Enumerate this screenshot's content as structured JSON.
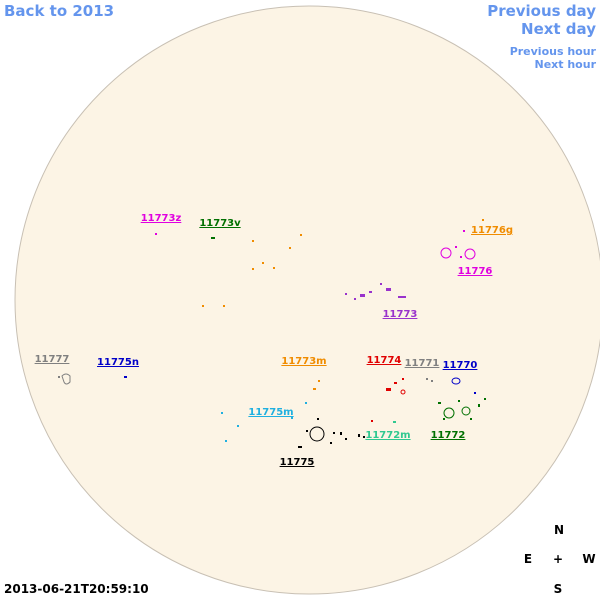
{
  "navigation": {
    "back": "Back to 2013",
    "previous_day": "Previous day",
    "next_day": "Next day",
    "previous_hour": "Previous hour",
    "next_hour": "Next hour"
  },
  "regions": [
    {
      "label": "11773z",
      "color": "#e000e0"
    },
    {
      "label": "11773v",
      "color": "#007000"
    },
    {
      "label": "11776g",
      "color": "#f08c00"
    },
    {
      "label": "11776",
      "color": "#e000e0"
    },
    {
      "label": "11773",
      "color": "#9932cc"
    },
    {
      "label": "11777",
      "color": "#808080"
    },
    {
      "label": "11775n",
      "color": "#0000c8"
    },
    {
      "label": "11773m",
      "color": "#f08c00"
    },
    {
      "label": "11774",
      "color": "#e00000"
    },
    {
      "label": "11771",
      "color": "#808080"
    },
    {
      "label": "11770",
      "color": "#0000c8"
    },
    {
      "label": "11775m",
      "color": "#20b0e0"
    },
    {
      "label": "11772m",
      "color": "#30c890"
    },
    {
      "label": "11772",
      "color": "#007000"
    },
    {
      "label": "11775",
      "color": "#000000"
    }
  ],
  "timestamp": "2013-06-21T20:59:10",
  "compass": {
    "north": "N",
    "east": "E",
    "center": "+",
    "west": "W",
    "south": "S"
  }
}
